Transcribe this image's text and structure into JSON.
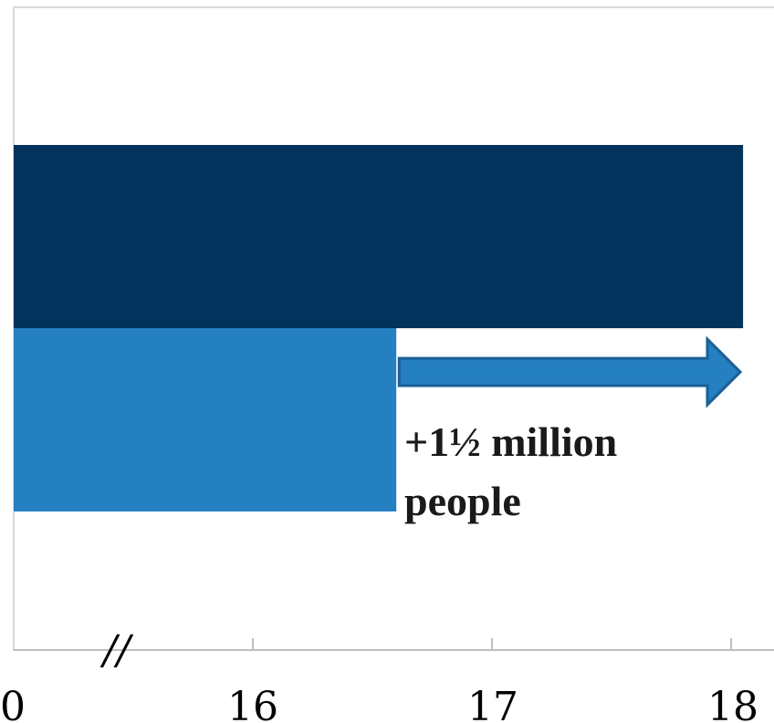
{
  "chart_data": {
    "type": "bar",
    "orientation": "horizontal",
    "title": "",
    "xlabel": "",
    "ylabel": "",
    "axis_break": true,
    "axis_break_symbol": "//",
    "x_ticks": [
      "0",
      "16",
      "17",
      "18"
    ],
    "xlim": [
      15,
      18
    ],
    "categories": [
      "",
      ""
    ],
    "values": [
      18.05,
      16.6
    ],
    "bar_colors": [
      "#02335c",
      "#2580c1"
    ],
    "grid": false,
    "legend": "none",
    "annotation": {
      "line1": "+1½ million",
      "line2": "people",
      "arrow_from": 16.65,
      "arrow_to": 18.0,
      "arrow_color": "#2580c1",
      "arrow_outline": "#1a5f96"
    }
  }
}
